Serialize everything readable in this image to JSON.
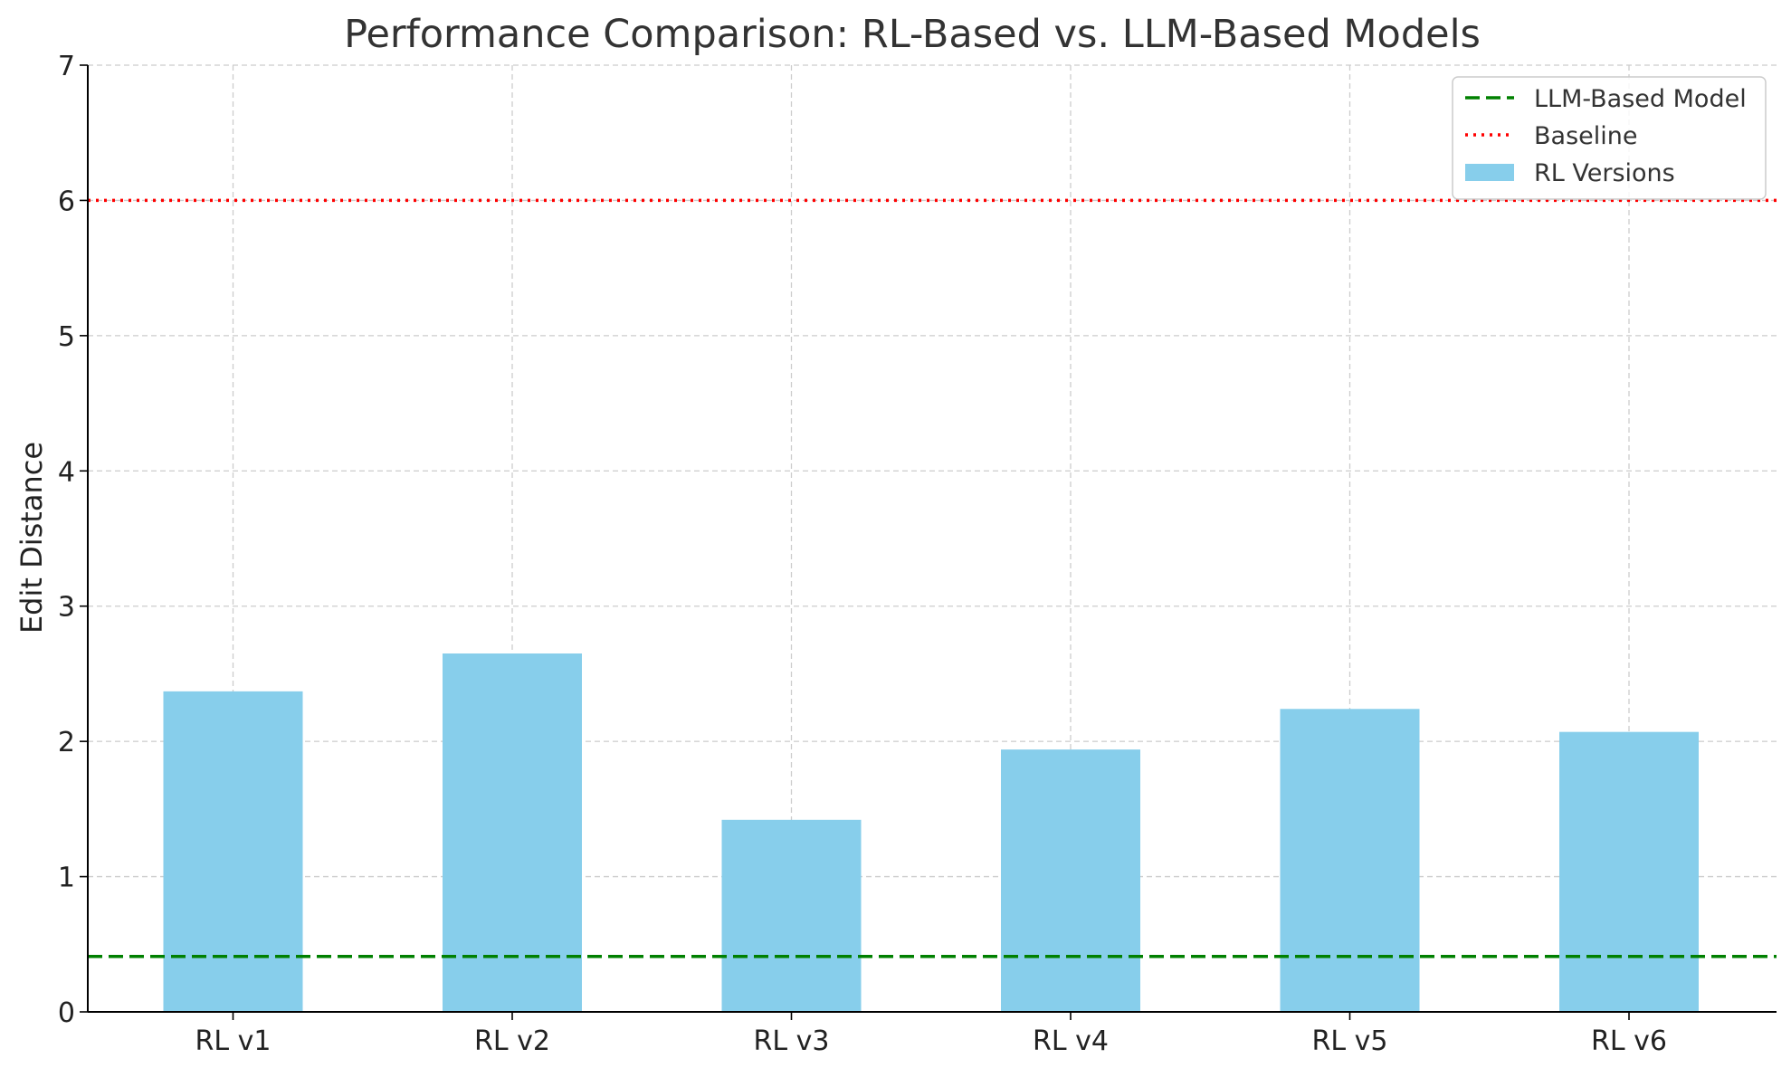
{
  "chart_data": {
    "type": "bar",
    "title": "Performance Comparison: RL-Based vs. LLM-Based Models",
    "xlabel": "",
    "ylabel": "Edit Distance",
    "categories": [
      "RL v1",
      "RL v2",
      "RL v3",
      "RL v4",
      "RL v5",
      "RL v6"
    ],
    "series": [
      {
        "name": "RL Versions",
        "values": [
          2.37,
          2.65,
          1.42,
          1.94,
          2.24,
          2.07
        ],
        "color": "#87CEEB"
      }
    ],
    "reference_lines": [
      {
        "name": "LLM-Based Model",
        "value": 0.41,
        "color": "#008000",
        "style": "dashed"
      },
      {
        "name": "Baseline",
        "value": 6.0,
        "color": "#FF0000",
        "style": "dotted"
      }
    ],
    "ylim": [
      0,
      7
    ],
    "yticks": [
      0,
      1,
      2,
      3,
      4,
      5,
      6,
      7
    ],
    "grid": true,
    "legend_position": "top-right"
  }
}
